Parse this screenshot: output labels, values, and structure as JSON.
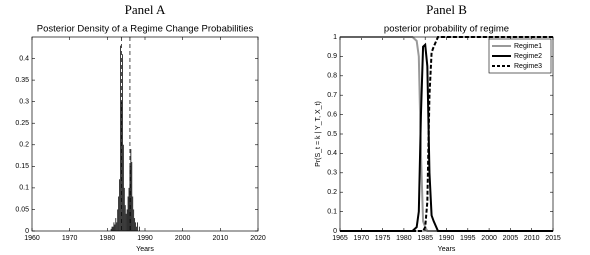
{
  "chart_data": [
    {
      "type": "bar",
      "panel": "Panel A",
      "title": "Posterior Density of a Regime Change Probabilities",
      "xlabel": "Years",
      "x": [
        1981,
        1981.25,
        1981.5,
        1981.75,
        1982,
        1982.25,
        1982.5,
        1982.75,
        1983,
        1983.25,
        1983.5,
        1983.75,
        1984,
        1984.25,
        1984.5,
        1984.75,
        1985,
        1985.25,
        1985.5,
        1985.75,
        1986,
        1986.25,
        1986.5,
        1986.75,
        1987,
        1987.25,
        1987.5,
        1987.75,
        1988,
        1988.5
      ],
      "values": [
        0.005,
        0.01,
        0.01,
        0.02,
        0.015,
        0.03,
        0.02,
        0.05,
        0.08,
        0.12,
        0.43,
        0.3,
        0.41,
        0.2,
        0.1,
        0.06,
        0.04,
        0.05,
        0.08,
        0.1,
        0.15,
        0.19,
        0.16,
        0.08,
        0.05,
        0.03,
        0.02,
        0.01,
        0.02,
        0.01
      ],
      "color": "#000000",
      "vlines": [
        1983.75,
        1986
      ],
      "xlim": [
        1960,
        2020
      ],
      "xticks": [
        1960,
        1970,
        1980,
        1990,
        2000,
        2010,
        2020
      ],
      "ylim": [
        0,
        0.45
      ],
      "yticks": [
        0,
        0.05,
        0.1,
        0.15,
        0.2,
        0.25,
        0.3,
        0.35,
        0.4
      ]
    },
    {
      "type": "line",
      "panel": "Panel B",
      "title": "posterior probability of regime",
      "xlabel": "Years",
      "ylabel": "Pr(S_t = k | Y_T, X_t)",
      "x": [
        1965,
        1980,
        1982,
        1983,
        1983.5,
        1984,
        1984.5,
        1985,
        1985.5,
        1986,
        1986.5,
        1987,
        1988,
        1990,
        2015
      ],
      "series": [
        {
          "name": "Regime1",
          "color": "#999999",
          "dashed": false,
          "values": [
            1,
            1,
            1,
            0.98,
            0.9,
            0.4,
            0.05,
            0.02,
            0,
            0,
            0,
            0,
            0,
            0,
            0
          ]
        },
        {
          "name": "Regime2",
          "color": "#000000",
          "dashed": false,
          "values": [
            0,
            0,
            0,
            0.02,
            0.1,
            0.6,
            0.95,
            0.96,
            0.85,
            0.3,
            0.08,
            0.05,
            0,
            0,
            0
          ]
        },
        {
          "name": "Regime3",
          "color": "#000000",
          "dashed": true,
          "values": [
            0,
            0,
            0,
            0,
            0,
            0,
            0,
            0.02,
            0.15,
            0.7,
            0.92,
            0.95,
            1,
            1,
            1
          ]
        }
      ],
      "legend": "upper right",
      "xlim": [
        1965,
        2015
      ],
      "xticks": [
        1965,
        1970,
        1975,
        1980,
        1985,
        1990,
        1995,
        2000,
        2005,
        2010,
        2015
      ],
      "ylim": [
        0,
        1
      ],
      "yticks": [
        0,
        0.1,
        0.2,
        0.3,
        0.4,
        0.5,
        0.6,
        0.7,
        0.8,
        0.9,
        1
      ]
    }
  ]
}
